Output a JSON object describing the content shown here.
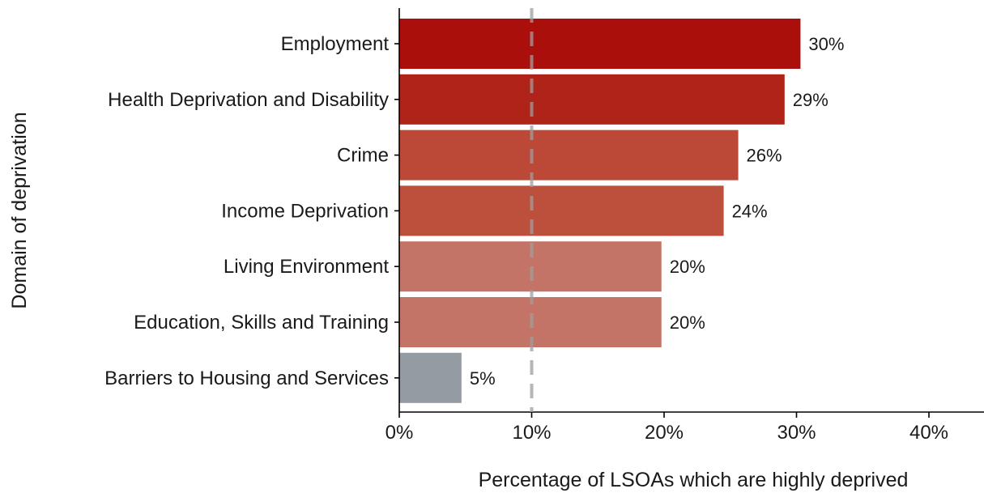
{
  "chart_data": {
    "type": "bar",
    "orientation": "horizontal",
    "categories": [
      "Employment",
      "Health Deprivation and Disability",
      "Crime",
      "Income Deprivation",
      "Living Environment",
      "Education, Skills and Training",
      "Barriers to Housing and Services"
    ],
    "values": [
      30.3,
      29.1,
      25.6,
      24.5,
      19.8,
      19.8,
      4.7
    ],
    "data_labels": [
      "30%",
      "29%",
      "26%",
      "24%",
      "20%",
      "20%",
      "5%"
    ],
    "bar_colors": [
      "#ab0f0c",
      "#b02318",
      "#bc4937",
      "#bc503d",
      "#c47466",
      "#c47466",
      "#959ba3"
    ],
    "xlabel": "Percentage of LSOAs which are highly deprived",
    "ylabel": "Domain of deprivation",
    "xlim": [
      0,
      44
    ],
    "xticks": [
      0,
      10,
      20,
      30,
      40
    ],
    "xtick_labels": [
      "0%",
      "10%",
      "20%",
      "30%",
      "40%"
    ],
    "reference_line": {
      "value": 10,
      "style": "dashed",
      "color": "#9e9e9e"
    },
    "grid": false,
    "legend": "none"
  }
}
